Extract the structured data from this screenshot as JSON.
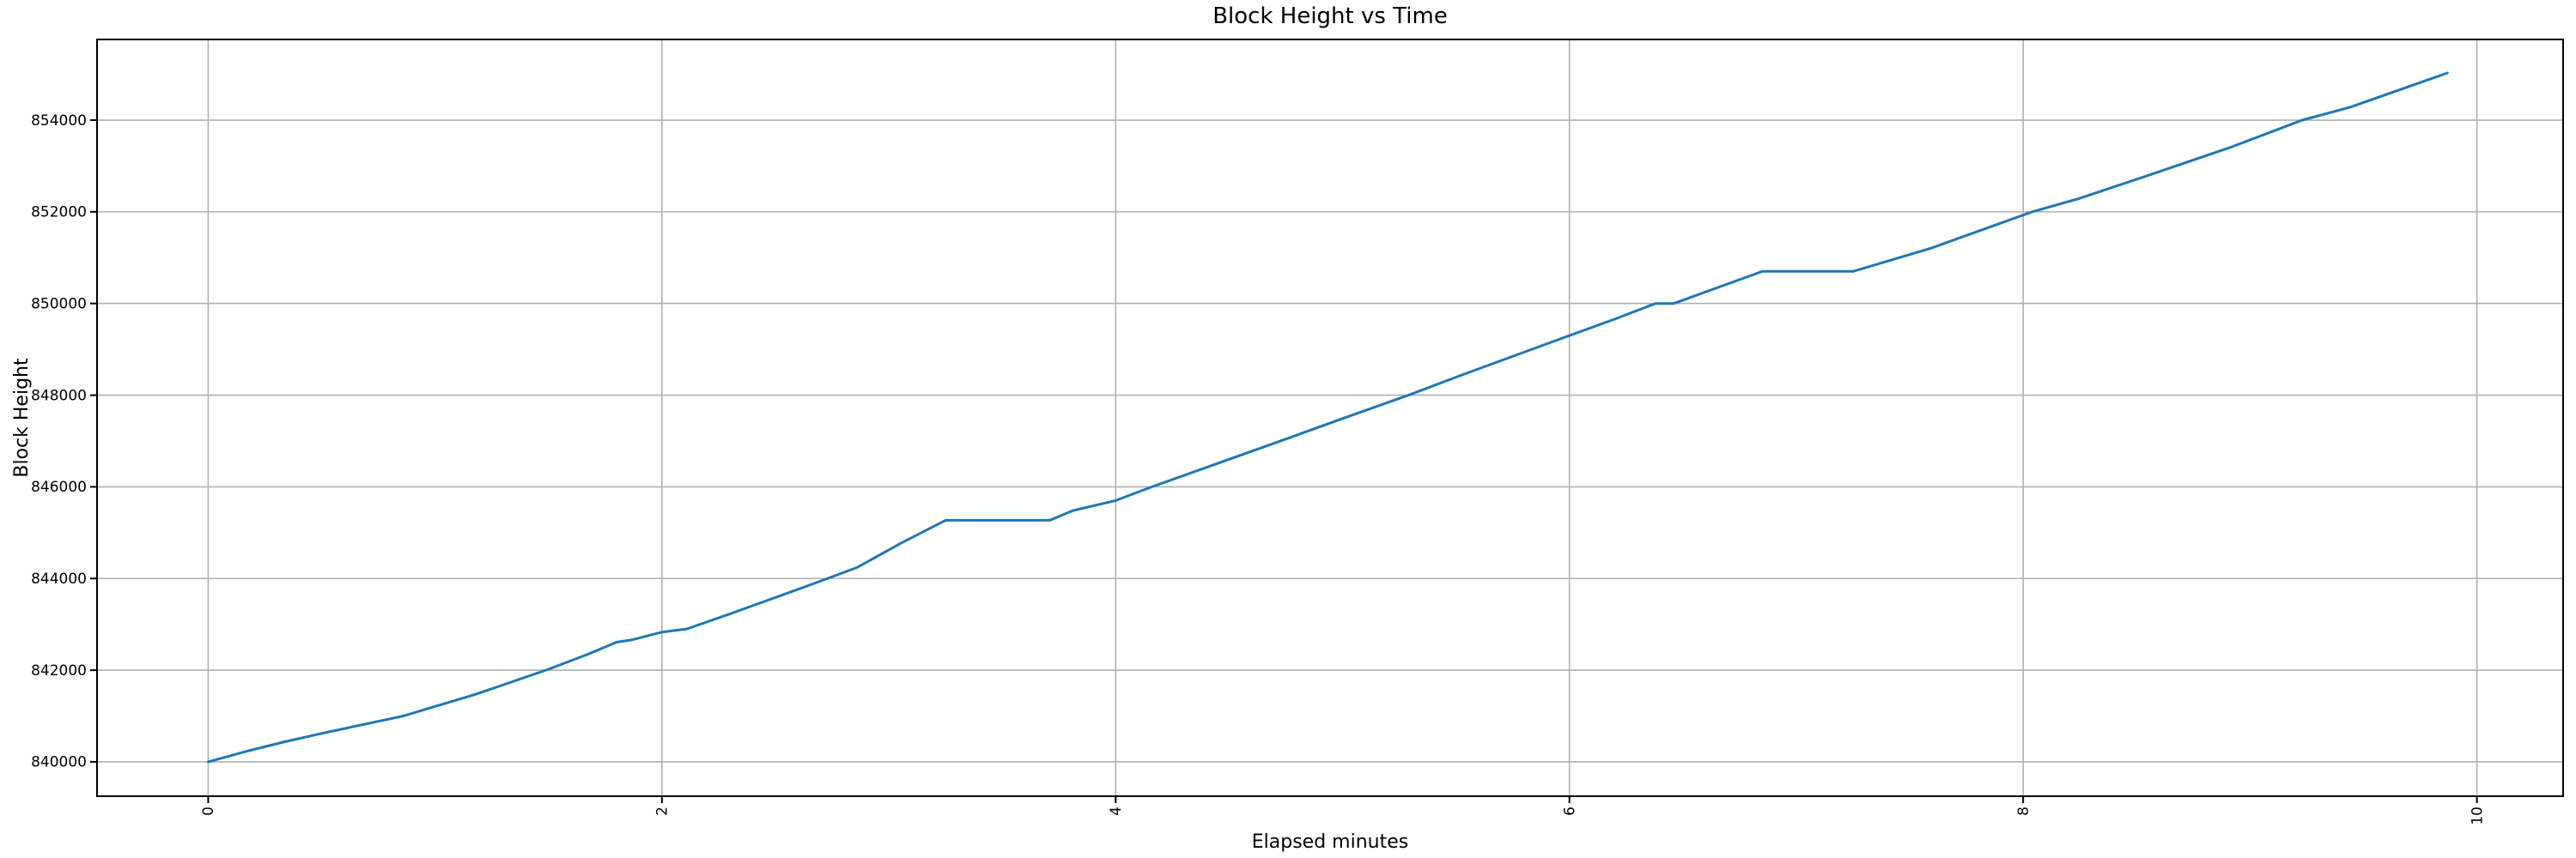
{
  "chart_data": {
    "type": "line",
    "title": "Block Height vs Time",
    "xlabel": "Elapsed minutes",
    "ylabel": "Block Height",
    "xlim": [
      -0.49,
      10.38
    ],
    "ylim": [
      839250,
      855760
    ],
    "xticks": [
      0,
      2,
      4,
      6,
      8,
      10
    ],
    "yticks": [
      840000,
      842000,
      844000,
      846000,
      848000,
      850000,
      852000,
      854000
    ],
    "x_tick_rotation": 90,
    "grid": true,
    "legend": "none",
    "colors": {
      "line": "#1f77b4",
      "grid": "#b0b0b0",
      "frame": "#000000",
      "background": "#ffffff"
    },
    "series": [
      {
        "name": "block-height",
        "x": [
          0.0,
          0.17,
          0.33,
          0.5,
          0.67,
          0.86,
          1.0,
          1.17,
          1.33,
          1.5,
          1.67,
          1.8,
          1.87,
          2.0,
          2.11,
          2.3,
          2.48,
          2.67,
          2.86,
          3.05,
          3.25,
          3.71,
          3.81,
          4.0,
          4.16,
          4.5,
          4.76,
          5.0,
          5.29,
          5.52,
          6.0,
          6.2,
          6.38,
          6.46,
          6.85,
          7.25,
          7.59,
          8.04,
          8.24,
          8.53,
          8.91,
          9.23,
          9.44,
          9.87
        ],
        "values": [
          840000,
          840230,
          840430,
          840620,
          840800,
          841000,
          841210,
          841460,
          841730,
          842020,
          842340,
          842610,
          842665,
          842830,
          842900,
          843230,
          843550,
          843890,
          844240,
          844760,
          845270,
          845270,
          845480,
          845700,
          846000,
          846600,
          847060,
          847490,
          848000,
          848430,
          849300,
          849660,
          850000,
          850000,
          850700,
          850700,
          851200,
          852000,
          852280,
          852760,
          853400,
          854000,
          854280,
          855030
        ]
      }
    ]
  }
}
